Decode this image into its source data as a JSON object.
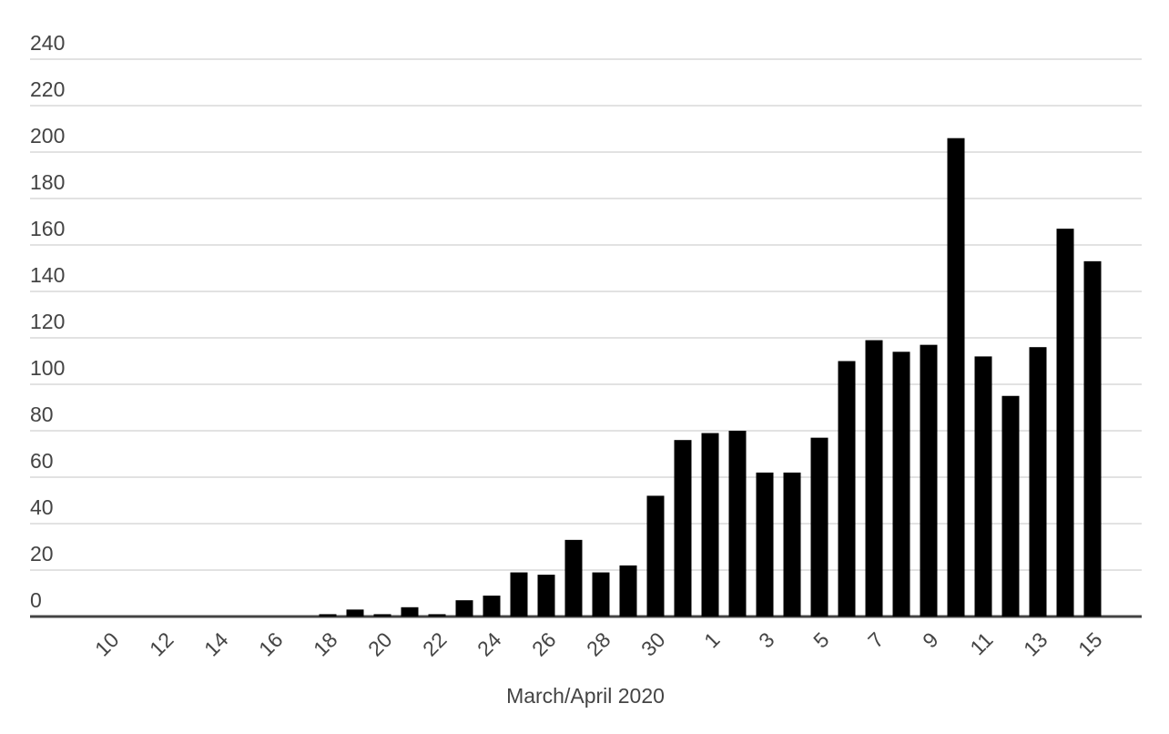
{
  "chart_data": {
    "type": "bar",
    "x_label": "March/April 2020",
    "categories": [
      "10",
      null,
      "12",
      null,
      "14",
      null,
      "16",
      null,
      "18",
      null,
      "20",
      null,
      "22",
      null,
      "24",
      null,
      "26",
      null,
      "28",
      null,
      "30",
      null,
      "1",
      null,
      "3",
      null,
      "5",
      null,
      "7",
      null,
      "9",
      null,
      "11",
      null,
      "13",
      null,
      "15"
    ],
    "values": [
      0,
      0,
      0,
      0,
      0,
      0,
      0,
      0,
      1,
      3,
      1,
      4,
      1,
      7,
      9,
      19,
      18,
      33,
      19,
      22,
      52,
      76,
      79,
      80,
      62,
      62,
      77,
      110,
      119,
      114,
      117,
      206,
      112,
      95,
      116,
      167,
      153
    ],
    "color": "#000000",
    "ylim": [
      0,
      240
    ],
    "yticks": [
      0,
      20,
      40,
      60,
      80,
      100,
      120,
      140,
      160,
      180,
      200,
      220,
      240
    ],
    "grid": true
  }
}
